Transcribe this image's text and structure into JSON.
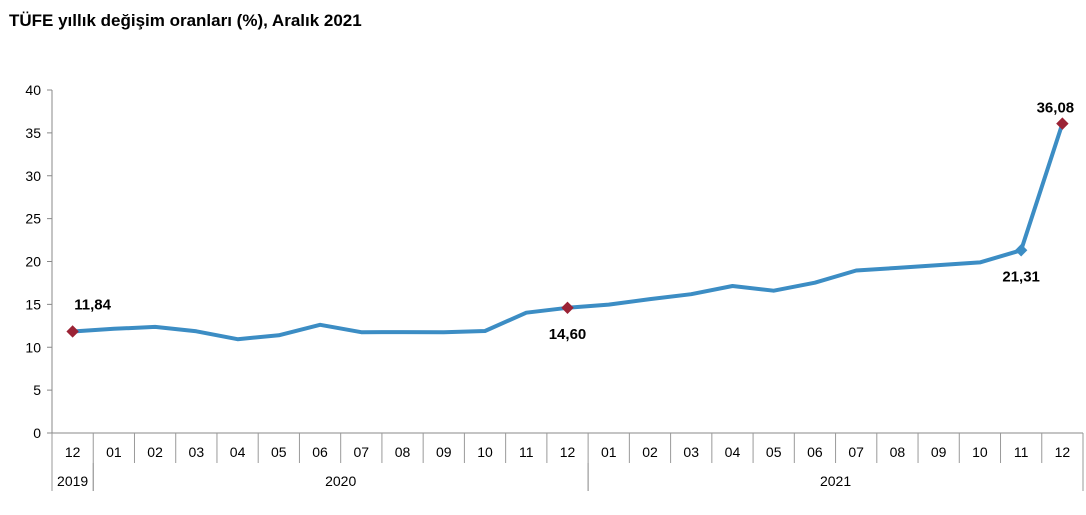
{
  "chart_data": {
    "type": "line",
    "title": "TÜFE yıllık değişim oranları (%), Aralık 2021",
    "xlabel": "",
    "ylabel": "",
    "ylim": [
      0,
      40
    ],
    "yticks": [
      "0",
      "5",
      "10",
      "15",
      "20",
      "25",
      "30",
      "35",
      "40"
    ],
    "grid": false,
    "legend": "none",
    "categories": [
      "12",
      "01",
      "02",
      "03",
      "04",
      "05",
      "06",
      "07",
      "08",
      "09",
      "10",
      "11",
      "12",
      "01",
      "02",
      "03",
      "04",
      "05",
      "06",
      "07",
      "08",
      "09",
      "10",
      "11",
      "12"
    ],
    "year_groups": [
      {
        "label": "2019",
        "start": 0,
        "end": 0
      },
      {
        "label": "2020",
        "start": 1,
        "end": 12
      },
      {
        "label": "2021",
        "start": 13,
        "end": 24
      }
    ],
    "series": [
      {
        "values": [
          11.84,
          12.15,
          12.37,
          11.86,
          10.94,
          11.39,
          12.62,
          11.76,
          11.77,
          11.75,
          11.89,
          14.03,
          14.6,
          14.97,
          15.61,
          16.19,
          17.14,
          16.59,
          17.53,
          18.95,
          19.25,
          19.58,
          19.89,
          21.31,
          36.08
        ],
        "color": "#3c8dc4"
      }
    ],
    "highlighted_points": [
      {
        "index": 0,
        "label": "11,84",
        "marker_color": "#9b2335"
      },
      {
        "index": 12,
        "label": "14,60",
        "marker_color": "#9b2335"
      },
      {
        "index": 23,
        "label": "21,31",
        "marker_color": "#3c8dc4"
      },
      {
        "index": 24,
        "label": "36,08",
        "marker_color": "#9b2335"
      }
    ]
  }
}
